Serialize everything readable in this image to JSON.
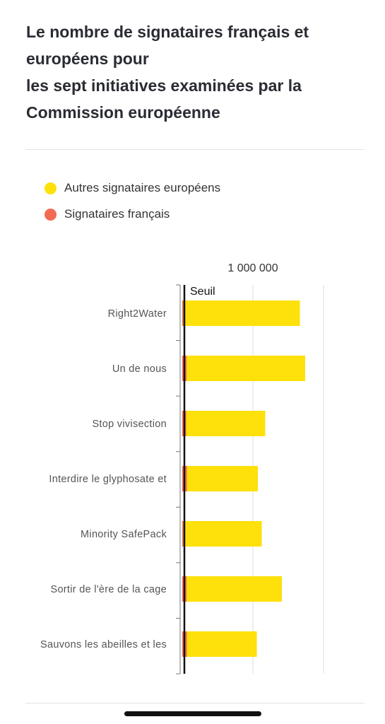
{
  "title_lines": [
    "Le nombre de signataires français et",
    "européens pour",
    "les sept initiatives examinées par la",
    "Commission européenne"
  ],
  "legend": [
    {
      "label": "Autres signataires européens",
      "color": "#FEE00A"
    },
    {
      "label": "Signataires français",
      "color": "#F26A52"
    }
  ],
  "chart_data": {
    "type": "bar",
    "orientation": "horizontal",
    "stacked": true,
    "categories": [
      "Right2Water",
      "Un de nous",
      "Stop vivisection",
      "Interdire le glyphosate et",
      "Minority SafePack",
      "Sortir de l'ère de la cage",
      "Sauvons les abeilles et les"
    ],
    "series": [
      {
        "name": "Signataires français",
        "color": "#F26A52",
        "values": [
          15000,
          60000,
          55000,
          65000,
          15000,
          60000,
          65000
        ]
      },
      {
        "name": "Autres signataires européens",
        "color": "#FEE00A",
        "values": [
          1650000,
          1680000,
          1120000,
          1005000,
          1110000,
          1350000,
          990000
        ]
      }
    ],
    "xlim": [
      0,
      2000000
    ],
    "x_ticks": [
      1000000,
      2000000
    ],
    "x_tick_labels": [
      "1 000 000",
      ""
    ],
    "threshold": {
      "value": 0,
      "label": "Seuil"
    },
    "grid": true
  }
}
